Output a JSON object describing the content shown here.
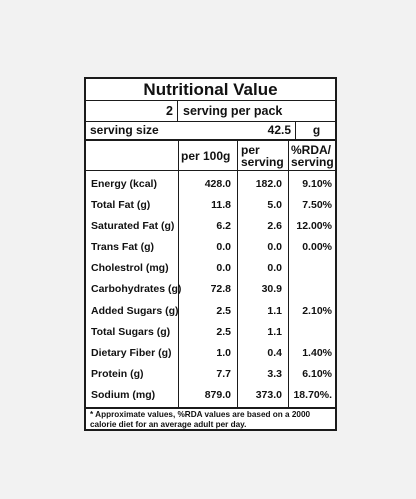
{
  "label": {
    "title": "Nutritional Value",
    "servings_per_pack": "2",
    "servings_per_pack_label": "serving per pack",
    "serving_size_label": "serving size",
    "serving_size_value": "42.5",
    "serving_size_unit": "g",
    "columns": {
      "per_100g": "per 100g",
      "per_serving_line1": "per",
      "per_serving_line2": "serving",
      "rda_line1": "%RDA/",
      "rda_line2": "serving"
    },
    "rows": [
      {
        "name": "Energy (kcal)",
        "per_100g": "428.0",
        "per_serving": "182.0",
        "rda": "9.10%"
      },
      {
        "name": "Total Fat (g)",
        "per_100g": "11.8",
        "per_serving": "5.0",
        "rda": "7.50%"
      },
      {
        "name": "Saturated Fat (g)",
        "per_100g": "6.2",
        "per_serving": "2.6",
        "rda": "12.00%"
      },
      {
        "name": "Trans Fat (g)",
        "per_100g": "0.0",
        "per_serving": "0.0",
        "rda": "0.00%"
      },
      {
        "name": "Cholestrol (mg)",
        "per_100g": "0.0",
        "per_serving": "0.0",
        "rda": ""
      },
      {
        "name": "Carbohydrates (g)",
        "per_100g": "72.8",
        "per_serving": "30.9",
        "rda": ""
      },
      {
        "name": "Added Sugars (g)",
        "per_100g": "2.5",
        "per_serving": "1.1",
        "rda": "2.10%"
      },
      {
        "name": "Total Sugars (g)",
        "per_100g": "2.5",
        "per_serving": "1.1",
        "rda": ""
      },
      {
        "name": "Dietary Fiber (g)",
        "per_100g": "1.0",
        "per_serving": "0.4",
        "rda": "1.40%"
      },
      {
        "name": "Protein (g)",
        "per_100g": "7.7",
        "per_serving": "3.3",
        "rda": "6.10%"
      },
      {
        "name": "Sodium (mg)",
        "per_100g": "879.0",
        "per_serving": "373.0",
        "rda": "18.70%."
      }
    ],
    "footnote": "* Approximate values, %RDA values are based on a 2000 calorie diet for an average adult per day."
  }
}
